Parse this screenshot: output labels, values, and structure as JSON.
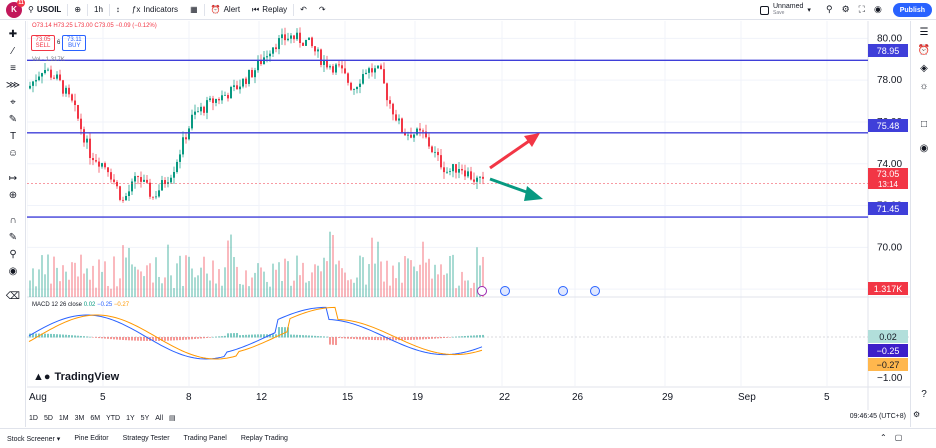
{
  "header": {
    "avatar_letter": "K",
    "avatar_badge": "11",
    "symbol": "USOIL",
    "interval": "1h",
    "indicators_label": "Indicators",
    "alert_label": "Alert",
    "replay_label": "Replay",
    "layout_name": "Unnamed",
    "layout_status": "Save",
    "publish_label": "Publish"
  },
  "legend": {
    "ohlc": "O73.14 H73.25 L73.00 C73.05 −0.09 (−0.12%)",
    "sell_price": "73.05",
    "sell_label": "SELL",
    "spread": "6",
    "buy_price": "73.11",
    "buy_label": "BUY",
    "vol_label": "Vol · 1.317K"
  },
  "price_axis": {
    "ticks": [
      "80.00",
      "78.00",
      "76.00",
      "74.00",
      "72.00",
      "70.00",
      "68.00"
    ],
    "hline_labels": [
      "78.95",
      "75.48",
      "71.45"
    ],
    "current_price": "73.05",
    "countdown": "13:14",
    "volume_label": "1.317K"
  },
  "macd": {
    "title": "MACD 12 26 close",
    "v1": "0.02",
    "v2": "−0.25",
    "v3": "−0.27",
    "ticks": [
      "0.02",
      "−0.25",
      "−0.27",
      "−1.00"
    ]
  },
  "time_axis": {
    "ticks": [
      "Aug",
      "5",
      "8",
      "12",
      "15",
      "19",
      "22",
      "26",
      "29",
      "Sep",
      "5"
    ]
  },
  "ranges": [
    "1D",
    "5D",
    "1M",
    "3M",
    "6M",
    "YTD",
    "1Y",
    "5Y",
    "All"
  ],
  "timezone": "09:46:45 (UTC+8)",
  "bottom_tabs": [
    "Stock Screener",
    "Pine Editor",
    "Strategy Tester",
    "Trading Panel",
    "Replay Trading"
  ],
  "watermark": "TradingView",
  "colors": {
    "up": "#089981",
    "down": "#f23645",
    "hline": "#3f3fd9",
    "accent": "#2962ff"
  }
}
